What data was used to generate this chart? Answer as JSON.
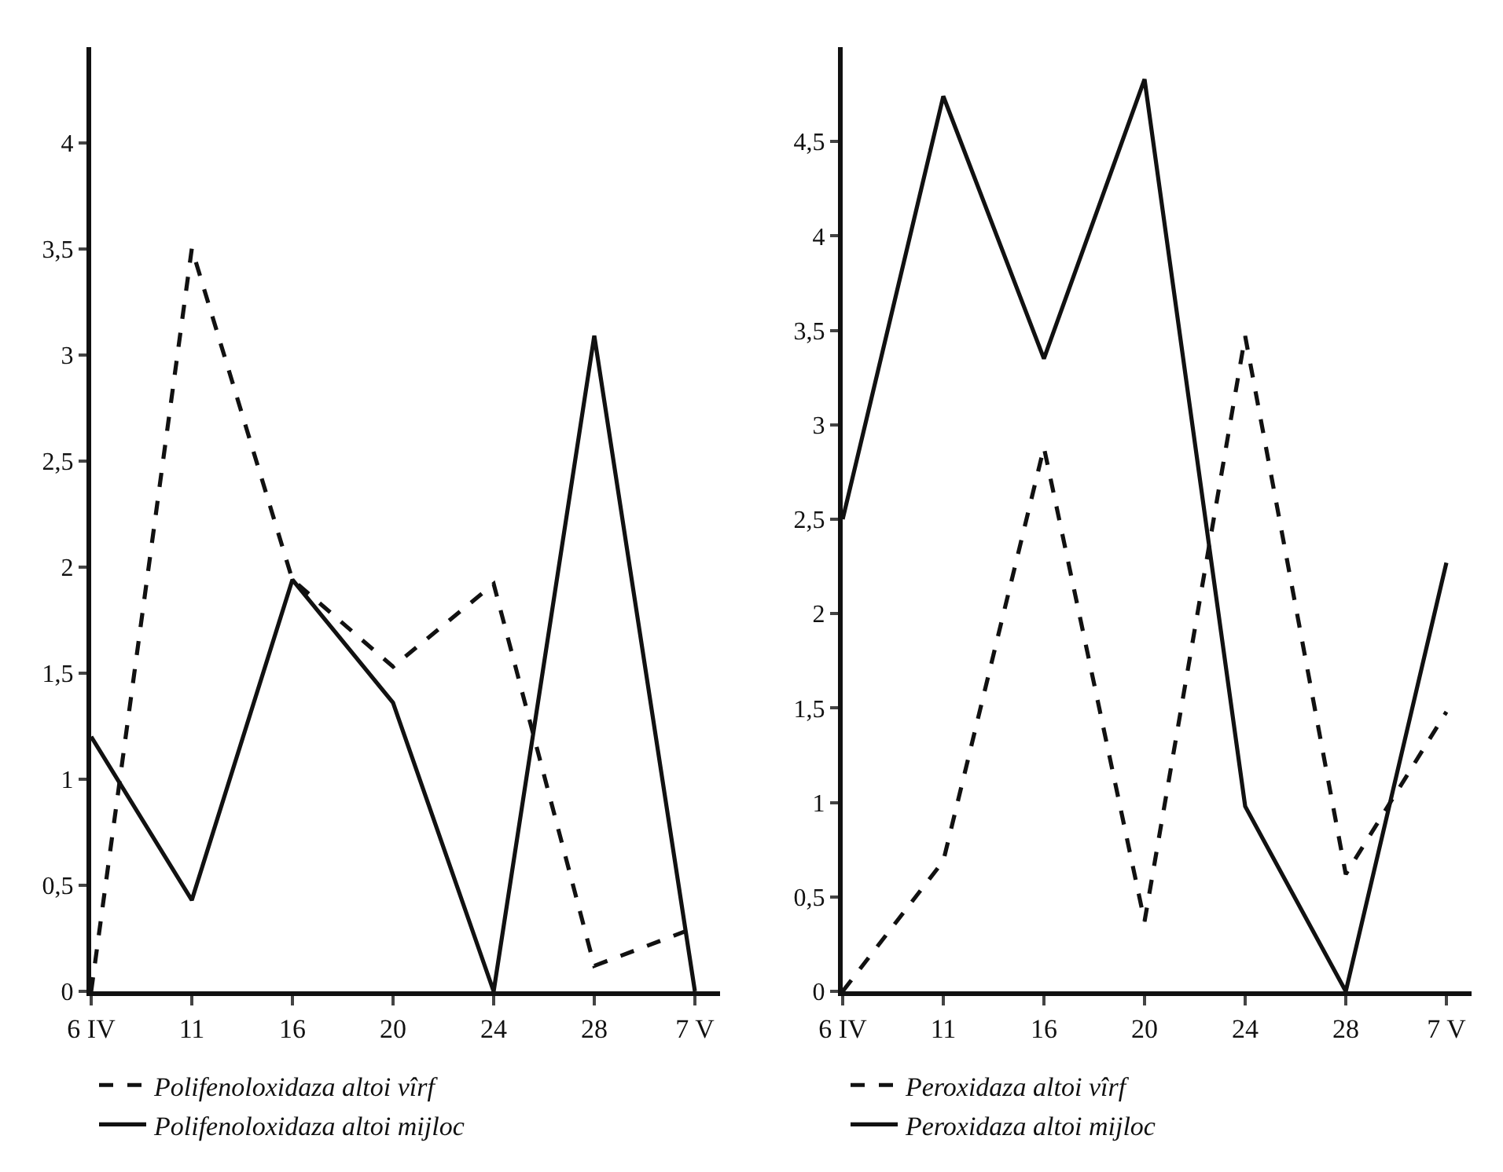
{
  "chart_data": [
    {
      "type": "line",
      "categories": [
        "6 IV",
        "11",
        "16",
        "20",
        "24",
        "28",
        "7 V"
      ],
      "series": [
        {
          "name": "Polifenoloxidaza altoi vîrf",
          "color": "#111111",
          "line_style": "dashed",
          "values": [
            0,
            3.5,
            1.94,
            1.53,
            1.92,
            0.12,
            0.3
          ]
        },
        {
          "name": "Polifenoloxidaza altoi mijloc",
          "color": "#111111",
          "line_style": "solid",
          "values": [
            1.2,
            0.43,
            1.94,
            1.36,
            0,
            3.09,
            0
          ]
        }
      ],
      "ylim": [
        0,
        4.45
      ],
      "yticks": [
        0,
        {
          "value": 0.5,
          "label": "0,5"
        },
        1,
        {
          "value": 1.5,
          "label": "1,5"
        },
        2,
        {
          "value": 2.5,
          "label": "2,5"
        },
        3,
        {
          "value": 3.5,
          "label": "3,5"
        },
        4
      ],
      "grid": false,
      "legend": "bottom",
      "marker": "none"
    },
    {
      "type": "line",
      "categories": [
        "6 IV",
        "11",
        "16",
        "20",
        "24",
        "28",
        "7 V"
      ],
      "series": [
        {
          "name": "Peroxidaza altoi vîrf",
          "color": "#111111",
          "line_style": "dashed",
          "values": [
            0,
            0.69,
            2.88,
            0.37,
            3.47,
            0.62,
            1.48
          ]
        },
        {
          "name": "Peroxidaza altoi mijloc",
          "color": "#111111",
          "line_style": "solid",
          "values": [
            2.5,
            4.74,
            3.35,
            4.83,
            0.98,
            0,
            2.27
          ]
        }
      ],
      "ylim": [
        0,
        5
      ],
      "yticks": [
        0,
        {
          "value": 0.5,
          "label": "0,5"
        },
        1,
        {
          "value": 1.5,
          "label": "1,5"
        },
        2,
        {
          "value": 2.5,
          "label": "2,5"
        },
        3,
        {
          "value": 3.5,
          "label": "3,5"
        },
        4,
        {
          "value": 4.5,
          "label": "4,5"
        }
      ],
      "grid": false,
      "legend": "bottom",
      "marker": "none"
    }
  ]
}
